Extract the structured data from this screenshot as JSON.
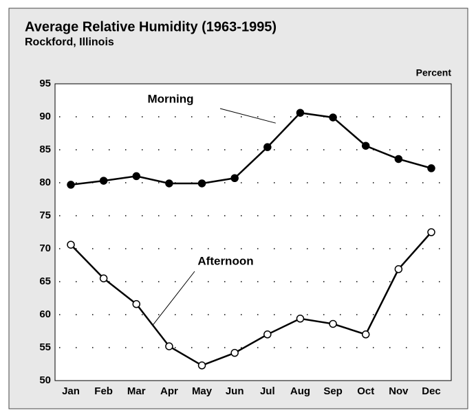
{
  "chart_data": {
    "type": "line",
    "title": "Average Relative Humidity (1963-1995)",
    "subtitle": "Rockford, Illinois",
    "ylabel": "Percent",
    "categories": [
      "Jan",
      "Feb",
      "Mar",
      "Apr",
      "May",
      "Jun",
      "Jul",
      "Aug",
      "Sep",
      "Oct",
      "Nov",
      "Dec"
    ],
    "series": [
      {
        "name": "Morning",
        "color": "#000000",
        "marker_fill": "#000000",
        "values": [
          79.7,
          80.3,
          81.0,
          79.9,
          79.9,
          80.7,
          85.4,
          90.6,
          89.9,
          85.6,
          83.6,
          82.2
        ]
      },
      {
        "name": "Afternoon",
        "color": "#000000",
        "marker_fill": "#ffffff",
        "values": [
          70.6,
          65.5,
          61.6,
          55.2,
          52.3,
          54.2,
          57.0,
          59.4,
          58.6,
          57.0,
          66.9,
          72.5
        ]
      }
    ],
    "ylim": [
      50,
      95
    ],
    "yticks": [
      50,
      55,
      60,
      65,
      70,
      75,
      80,
      85,
      90,
      95
    ],
    "grid": true
  }
}
